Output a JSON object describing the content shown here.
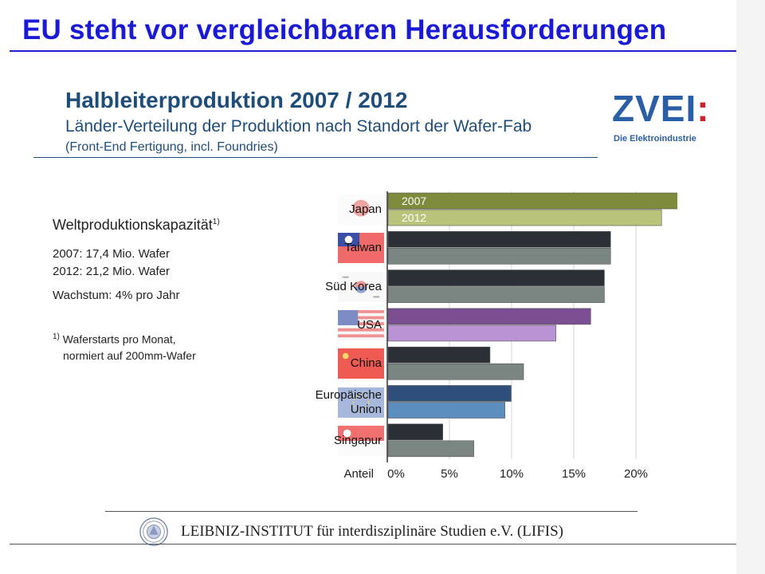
{
  "slide": {
    "title": "EU steht vor vergleichbaren Herausforderungen"
  },
  "header": {
    "title": "Halbleiterproduktion 2007 / 2012",
    "subtitle": "Länder-Verteilung der Produktion nach Standort der Wafer-Fab",
    "note": "(Front-End Fertigung, incl. Foundries)"
  },
  "logo": {
    "mark": "ZVEI",
    "colon": ":",
    "tagline": "Die Elektroindustrie"
  },
  "info": {
    "heading": "Weltproduktionskapazität",
    "heading_sup": "1)",
    "line_2007": "2007: 17,4 Mio. Wafer",
    "line_2012": "2012: 21,2 Mio. Wafer",
    "growth": "Wachstum: 4% pro Jahr",
    "footnote_marker": "1)",
    "footnote_line1": "Waferstarts pro Monat,",
    "footnote_line2": "normiert auf 200mm-Wafer"
  },
  "chart_data": {
    "type": "bar",
    "orientation": "horizontal",
    "categories": [
      "Japan",
      "Taiwan",
      "Süd Korea",
      "USA",
      "China",
      "Europäische Union",
      "Singapur"
    ],
    "category_lines": [
      [
        "Japan"
      ],
      [
        "Taiwan"
      ],
      [
        "Süd Korea"
      ],
      [
        "USA"
      ],
      [
        "China"
      ],
      [
        "Europäische",
        "Union"
      ],
      [
        "Singapur"
      ]
    ],
    "series": [
      {
        "name": "2007",
        "values": [
          24.0,
          17.9,
          17.4,
          16.3,
          8.2,
          9.9,
          4.4
        ]
      },
      {
        "name": "2012",
        "values": [
          22.0,
          17.9,
          17.4,
          13.5,
          10.9,
          9.4,
          6.9
        ]
      }
    ],
    "bar_colors": [
      [
        "#7e8a3c",
        "#b9c47a"
      ],
      [
        "#2b2f36",
        "#7b8682"
      ],
      [
        "#2b2f36",
        "#7b8682"
      ],
      [
        "#7c4f93",
        "#b993d4"
      ],
      [
        "#2b2f36",
        "#7b8682"
      ],
      [
        "#2e4f79",
        "#5b8ebf"
      ],
      [
        "#2b2f36",
        "#7b8682"
      ]
    ],
    "flags": [
      "japan",
      "taiwan",
      "south-korea",
      "usa",
      "china",
      "eu",
      "singapore"
    ],
    "xlabel": "Anteil",
    "xticks": [
      "0%",
      "5%",
      "10%",
      "15%",
      "20%"
    ],
    "xlim": [
      0,
      25
    ],
    "grid": true,
    "legend": "inside-first-bars"
  },
  "footer": {
    "institute": "LEIBNIZ-INSTITUT für interdisziplinäre Studien e.V. (LIFIS)"
  }
}
